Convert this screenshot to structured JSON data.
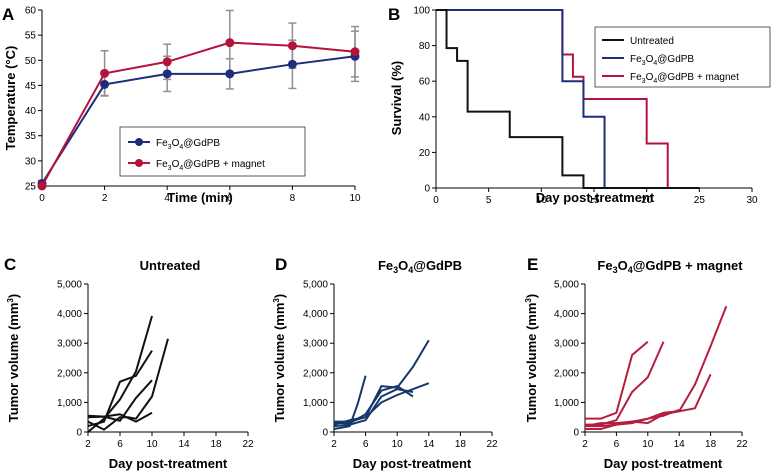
{
  "colors": {
    "blue": "#1f2d7a",
    "red": "#b5123c",
    "black": "#111111",
    "navy": "#17376a",
    "crimson": "#b71d3e",
    "error": "#909090"
  },
  "chart_data": [
    {
      "id": "A",
      "type": "line",
      "panel_label": "A",
      "xlabel": "Time (min)",
      "ylabel": "Temperature (°C)",
      "xlim": [
        0,
        10
      ],
      "ylim": [
        25,
        60
      ],
      "xticks": [
        0,
        2,
        4,
        6,
        8,
        10
      ],
      "yticks": [
        25,
        30,
        35,
        40,
        45,
        50,
        55,
        60
      ],
      "x": [
        0,
        2,
        4,
        6,
        8,
        10
      ],
      "legend_position": "center",
      "series": [
        {
          "name_base": "Fe",
          "name_sub1": "3",
          "name_mid": "O",
          "name_sub2": "4",
          "name_rest": "@GdPB",
          "color": "#1f2d7a",
          "values": [
            25.5,
            45.2,
            47.3,
            47.3,
            49.2,
            50.8
          ],
          "errors": [
            0.6,
            2.2,
            3.5,
            3.0,
            4.8,
            5.0
          ]
        },
        {
          "name_base": "Fe",
          "name_sub1": "3",
          "name_mid": "O",
          "name_sub2": "4",
          "name_rest": "@GdPB + magnet",
          "color": "#b5123c",
          "values": [
            25.0,
            47.4,
            49.7,
            53.5,
            52.9,
            51.7
          ],
          "errors": [
            0.6,
            4.5,
            3.5,
            6.4,
            4.5,
            5.0
          ]
        }
      ]
    },
    {
      "id": "B",
      "type": "line",
      "panel_label": "B",
      "xlabel": "Day post-treatment",
      "ylabel": "Survival (%)",
      "xlim": [
        0,
        30
      ],
      "ylim": [
        0,
        100
      ],
      "xticks": [
        0,
        5,
        10,
        15,
        20,
        25,
        30
      ],
      "yticks": [
        0,
        20,
        40,
        60,
        80,
        100
      ],
      "legend_position": "top-right",
      "series": [
        {
          "name": "Untreated",
          "color": "#111111",
          "steps": [
            [
              0,
              100
            ],
            [
              1,
              100
            ],
            [
              1,
              78.6
            ],
            [
              2,
              78.6
            ],
            [
              2,
              71.4
            ],
            [
              3,
              71.4
            ],
            [
              3,
              42.9
            ],
            [
              7,
              42.9
            ],
            [
              7,
              28.6
            ],
            [
              12,
              28.6
            ],
            [
              12,
              7.1
            ],
            [
              14,
              7.1
            ],
            [
              14,
              0
            ],
            [
              25,
              0
            ]
          ]
        },
        {
          "name_base": "Fe",
          "name_sub1": "3",
          "name_mid": "O",
          "name_sub2": "4",
          "name_rest": "@GdPB",
          "color": "#1f2d7a",
          "steps": [
            [
              0,
              100
            ],
            [
              12,
              100
            ],
            [
              12,
              60
            ],
            [
              14,
              60
            ],
            [
              14,
              40
            ],
            [
              16,
              40
            ],
            [
              16,
              0
            ],
            [
              25,
              0
            ]
          ]
        },
        {
          "name_base": "Fe",
          "name_sub1": "3",
          "name_mid": "O",
          "name_sub2": "4",
          "name_rest": "@GdPB + magnet",
          "color": "#b5123c",
          "steps": [
            [
              0,
              100
            ],
            [
              12,
              100
            ],
            [
              12,
              75
            ],
            [
              13,
              75
            ],
            [
              13,
              62.5
            ],
            [
              14,
              62.5
            ],
            [
              14,
              50
            ],
            [
              20,
              50
            ],
            [
              20,
              25
            ],
            [
              22,
              25
            ],
            [
              22,
              0
            ],
            [
              25,
              0
            ]
          ]
        }
      ]
    },
    {
      "id": "C",
      "type": "line",
      "panel_label": "C",
      "title": "Untreated",
      "xlabel": "Day post-treatment",
      "ylabel_base": "Tumor volume (mm",
      "ylabel_sup": "3",
      "ylabel_end": ")",
      "xlim": [
        2,
        22
      ],
      "ylim": [
        0,
        5000
      ],
      "xticks": [
        2,
        6,
        10,
        14,
        18,
        22
      ],
      "yticks": [
        0,
        1000,
        2000,
        3000,
        4000,
        5000
      ],
      "ytick_labels": [
        "0",
        "1,000",
        "2,000",
        "3,000",
        "4,000",
        "5,000"
      ],
      "color": "#111111",
      "series": [
        {
          "x": [
            2,
            4,
            6,
            8,
            10
          ],
          "y": [
            0,
            450,
            1100,
            2050,
            3920
          ]
        },
        {
          "x": [
            2,
            4,
            6,
            8,
            10
          ],
          "y": [
            200,
            350,
            1700,
            1900,
            2750
          ]
        },
        {
          "x": [
            2,
            4,
            6,
            8,
            10
          ],
          "y": [
            550,
            520,
            380,
            1150,
            1750
          ]
        },
        {
          "x": [
            2,
            4,
            6,
            7,
            8,
            10,
            12
          ],
          "y": [
            350,
            80,
            500,
            500,
            450,
            1200,
            3150
          ]
        },
        {
          "x": [
            2,
            4,
            6,
            8,
            10
          ],
          "y": [
            500,
            520,
            600,
            350,
            650
          ]
        }
      ]
    },
    {
      "id": "D",
      "type": "line",
      "panel_label": "D",
      "title_base": "Fe",
      "title_sub1": "3",
      "title_mid": "O",
      "title_sub2": "4",
      "title_rest": "@GdPB",
      "xlabel": "Day post-treatment",
      "ylabel_base": "Tumor volume (mm",
      "ylabel_sup": "3",
      "ylabel_end": ")",
      "xlim": [
        2,
        22
      ],
      "ylim": [
        0,
        5000
      ],
      "xticks": [
        2,
        6,
        10,
        14,
        18,
        22
      ],
      "yticks": [
        0,
        1000,
        2000,
        3000,
        4000,
        5000
      ],
      "ytick_labels": [
        "0",
        "1,000",
        "2,000",
        "3,000",
        "4,000",
        "5,000"
      ],
      "color": "#17376a",
      "series": [
        {
          "x": [
            2,
            4,
            5,
            6
          ],
          "y": [
            100,
            200,
            950,
            1900
          ]
        },
        {
          "x": [
            2,
            4,
            6,
            8,
            10,
            12,
            14
          ],
          "y": [
            250,
            400,
            500,
            1550,
            1500,
            2200,
            3100
          ]
        },
        {
          "x": [
            2,
            4,
            6,
            8,
            10,
            12
          ],
          "y": [
            300,
            300,
            600,
            1400,
            1550,
            1200
          ]
        },
        {
          "x": [
            2,
            4,
            6,
            8,
            10,
            14
          ],
          "y": [
            350,
            350,
            500,
            1000,
            1250,
            1650
          ]
        },
        {
          "x": [
            2,
            4,
            6,
            8,
            10,
            12
          ],
          "y": [
            200,
            250,
            400,
            1200,
            1450,
            1350
          ]
        }
      ]
    },
    {
      "id": "E",
      "type": "line",
      "panel_label": "E",
      "title_base": "Fe",
      "title_sub1": "3",
      "title_mid": "O",
      "title_sub2": "4",
      "title_rest": "@GdPB + magnet",
      "xlabel": "Day post-treatment",
      "ylabel_base": "Tumor volume (mm",
      "ylabel_sup": "3",
      "ylabel_end": ")",
      "xlim": [
        2,
        22
      ],
      "ylim": [
        0,
        5000
      ],
      "xticks": [
        2,
        6,
        10,
        14,
        18,
        22
      ],
      "yticks": [
        0,
        1000,
        2000,
        3000,
        4000,
        5000
      ],
      "ytick_labels": [
        "0",
        "1,000",
        "2,000",
        "3,000",
        "4,000",
        "5,000"
      ],
      "color": "#b71d3e",
      "series": [
        {
          "x": [
            2,
            4,
            6,
            8,
            10
          ],
          "y": [
            450,
            450,
            650,
            2600,
            3050
          ]
        },
        {
          "x": [
            2,
            4,
            6,
            8,
            10,
            12
          ],
          "y": [
            250,
            250,
            400,
            1350,
            1850,
            3050
          ]
        },
        {
          "x": [
            2,
            4,
            6,
            8,
            10,
            12,
            14,
            16,
            18,
            20
          ],
          "y": [
            200,
            300,
            300,
            350,
            300,
            600,
            700,
            1600,
            2900,
            4250
          ]
        },
        {
          "x": [
            2,
            4,
            6,
            8,
            10,
            12,
            14,
            16,
            18
          ],
          "y": [
            100,
            100,
            250,
            350,
            450,
            650,
            700,
            800,
            1950
          ]
        },
        {
          "x": [
            2,
            4,
            6,
            8,
            10,
            12,
            14
          ],
          "y": [
            200,
            200,
            250,
            300,
            450,
            550,
            750
          ]
        }
      ]
    }
  ]
}
